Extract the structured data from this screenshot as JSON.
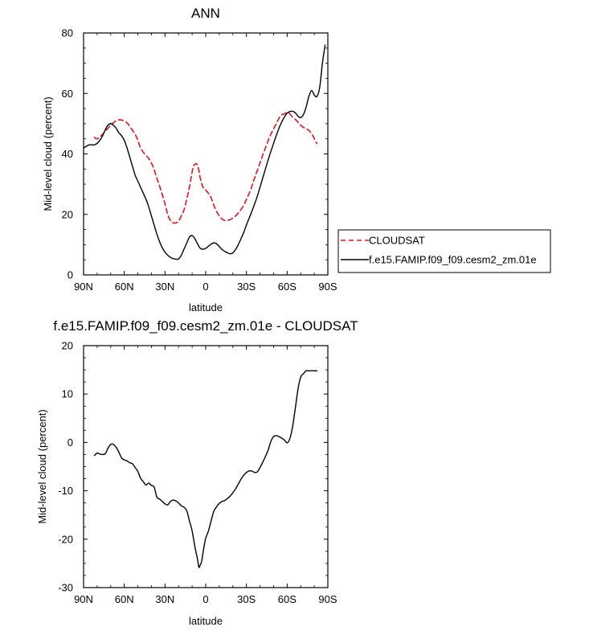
{
  "chart_data": [
    {
      "type": "line",
      "title": "ANN",
      "xlabel": "latitude",
      "ylabel": "Mid-level cloud (percent)",
      "xlim": [
        -90,
        90
      ],
      "ylim": [
        0,
        80
      ],
      "x_ticks": [
        -90,
        -60,
        -30,
        0,
        30,
        60,
        90
      ],
      "x_tick_labels": [
        "90N",
        "60N",
        "30N",
        "0",
        "30S",
        "60S",
        "90S"
      ],
      "y_ticks": [
        0,
        20,
        40,
        60,
        80
      ],
      "y_tick_labels": [
        "0",
        "20",
        "40",
        "60",
        "80"
      ],
      "legend": {
        "placement": "right",
        "entries": [
          "CLOUDSAT",
          "f.e15.FAMIP.f09_f09.cesm2_zm.01e"
        ]
      },
      "series": [
        {
          "name": "CLOUDSAT",
          "color": "#e8111b",
          "dash": "dashed",
          "x": [
            -82,
            -80,
            -76,
            -72,
            -68,
            -65,
            -62,
            -58,
            -55,
            -52,
            -50,
            -48,
            -45,
            -42,
            -39,
            -36,
            -33,
            -30,
            -28,
            -26,
            -24,
            -22,
            -20,
            -18,
            -16,
            -14,
            -12,
            -10,
            -9,
            -8,
            -7,
            -6,
            -5,
            -4,
            -2,
            0,
            2,
            4,
            6,
            8,
            10,
            12,
            14,
            16,
            18,
            20,
            22,
            25,
            28,
            30,
            33,
            36,
            40,
            44,
            48,
            52,
            55,
            58,
            61,
            64,
            67,
            70,
            73,
            76,
            79,
            80,
            81,
            82
          ],
          "y": [
            45.5,
            45,
            46.5,
            48.5,
            50.3,
            51.2,
            51.2,
            50.3,
            48.5,
            46.5,
            44.5,
            42,
            40,
            38.5,
            36,
            32,
            28,
            23.5,
            20,
            18,
            17.2,
            17.2,
            17.8,
            19.5,
            21.5,
            25,
            29,
            34,
            36,
            36.5,
            36.8,
            36.3,
            34.5,
            32,
            29,
            28,
            27,
            25.5,
            23,
            21,
            19.5,
            18.5,
            18,
            18,
            18.3,
            18.8,
            19.5,
            21,
            23,
            25,
            28,
            32,
            37,
            42,
            46.5,
            50,
            52.5,
            53.3,
            53.6,
            52.2,
            51,
            49.5,
            48.5,
            47.8,
            46,
            45,
            44,
            43.5
          ]
        },
        {
          "name": "f.e15.FAMIP.f09_f09.cesm2_zm.01e",
          "color": "#000000",
          "dash": "solid",
          "x": [
            -90,
            -88,
            -86,
            -84,
            -82,
            -80,
            -78,
            -76,
            -74,
            -72,
            -70,
            -68,
            -66,
            -64,
            -62,
            -60,
            -58,
            -56,
            -54,
            -52,
            -50,
            -48,
            -46,
            -44,
            -42,
            -40,
            -38,
            -36,
            -34,
            -32,
            -30,
            -28,
            -26,
            -24,
            -22,
            -20,
            -18,
            -16,
            -14,
            -12,
            -10,
            -8,
            -6,
            -4,
            -2,
            0,
            2,
            4,
            6,
            8,
            10,
            12,
            14,
            16,
            18,
            20,
            22,
            24,
            26,
            28,
            30,
            34,
            38,
            42,
            46,
            50,
            54,
            56,
            58,
            60,
            62,
            64,
            66,
            68,
            70,
            72,
            74,
            76,
            78,
            80,
            82,
            84,
            86,
            88
          ],
          "y": [
            42,
            42.5,
            43,
            43,
            43,
            43.5,
            44.5,
            46,
            48,
            49.5,
            50,
            49.5,
            48.5,
            47,
            46,
            44.5,
            42,
            39,
            36,
            33,
            31,
            29,
            27,
            25,
            22.5,
            19.5,
            16.5,
            13.5,
            11,
            9,
            7.5,
            6.5,
            5.8,
            5.4,
            5.2,
            5.3,
            6.5,
            8.5,
            10.5,
            12.5,
            13,
            12,
            10.3,
            8.8,
            8.5,
            8.8,
            9.5,
            10.2,
            10.6,
            10.3,
            9.4,
            8.4,
            7.8,
            7.3,
            7.0,
            7.3,
            8.4,
            10,
            12,
            14,
            16.5,
            21,
            26,
            32,
            38,
            43.5,
            48.5,
            50.5,
            52.2,
            53.5,
            54,
            54.1,
            53.6,
            52.5,
            52,
            53,
            55.5,
            59,
            61,
            59.5,
            59,
            62,
            70,
            76
          ]
        }
      ]
    },
    {
      "type": "line",
      "title": "f.e15.FAMIP.f09_f09.cesm2_zm.01e - CLOUDSAT",
      "xlabel": "latitude",
      "ylabel": "Mid-level cloud (percent)",
      "xlim": [
        -90,
        90
      ],
      "ylim": [
        -30,
        20
      ],
      "x_ticks": [
        -90,
        -60,
        -30,
        0,
        30,
        60,
        90
      ],
      "x_tick_labels": [
        "90N",
        "60N",
        "30N",
        "0",
        "30S",
        "60S",
        "90S"
      ],
      "y_ticks": [
        -30,
        -20,
        -10,
        0,
        10,
        20
      ],
      "y_tick_labels": [
        "-30",
        "-20",
        "-10",
        "0",
        "10",
        "20"
      ],
      "series": [
        {
          "color": "#000000",
          "dash": "solid",
          "x": [
            -82,
            -80,
            -78,
            -76,
            -74,
            -72,
            -70,
            -68,
            -66,
            -64,
            -62,
            -60,
            -58,
            -56,
            -54,
            -52,
            -50,
            -48,
            -46,
            -44,
            -42,
            -40,
            -38,
            -36,
            -34,
            -32,
            -30,
            -28,
            -26,
            -24,
            -22,
            -20,
            -18,
            -16,
            -14,
            -12,
            -10,
            -8,
            -6,
            -5,
            -4,
            -3,
            -2,
            -1,
            0,
            2,
            4,
            6,
            8,
            10,
            12,
            14,
            16,
            18,
            20,
            22,
            24,
            26,
            28,
            30,
            32,
            34,
            36,
            38,
            40,
            42,
            44,
            46,
            48,
            50,
            52,
            54,
            56,
            58,
            60,
            62,
            64,
            66,
            68,
            70,
            72,
            74,
            76,
            78,
            80,
            82
          ],
          "y": [
            -2.7,
            -2.2,
            -2.4,
            -2.5,
            -2.3,
            -1.2,
            -0.4,
            -0.4,
            -1.0,
            -2.0,
            -3.2,
            -3.6,
            -3.8,
            -4.2,
            -4.4,
            -5.2,
            -6.0,
            -7.4,
            -8.1,
            -8.8,
            -8.4,
            -8.9,
            -9.2,
            -11.3,
            -11.7,
            -12.2,
            -12.7,
            -12.9,
            -12.2,
            -11.9,
            -12.1,
            -12.5,
            -13.1,
            -13.4,
            -14.1,
            -16.2,
            -18.3,
            -21.5,
            -24.2,
            -25.8,
            -25.3,
            -24.6,
            -22.8,
            -21.2,
            -19.8,
            -18.3,
            -16.2,
            -14.2,
            -13.3,
            -12.6,
            -12.2,
            -12.0,
            -11.6,
            -11.1,
            -10.4,
            -9.6,
            -8.6,
            -7.6,
            -6.8,
            -6.2,
            -5.9,
            -5.9,
            -6.2,
            -6.1,
            -5.2,
            -4.1,
            -2.9,
            -1.6,
            0.2,
            1.2,
            1.4,
            1.2,
            0.9,
            0.5,
            -0.1,
            0.8,
            3.2,
            7.0,
            11.0,
            13.5,
            14.2,
            14.8,
            14.8,
            14.8,
            14.8,
            14.8
          ]
        }
      ]
    }
  ]
}
